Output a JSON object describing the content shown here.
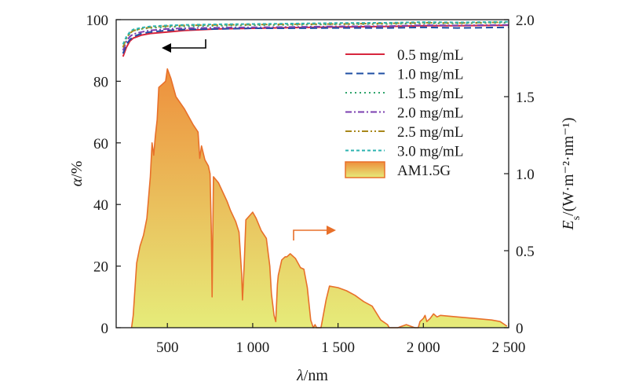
{
  "chart_data": {
    "type": "area",
    "x": {
      "label_symbol": "λ",
      "label_unit": "/nm",
      "range": [
        200,
        2500
      ],
      "ticks": [
        500,
        1000,
        1500,
        2000,
        2500
      ],
      "tick_labels": [
        "500",
        "1 000",
        "1 500",
        "2 000",
        "2 500"
      ]
    },
    "y_left": {
      "label_symbol": "α",
      "label_unit": "/%",
      "range": [
        0,
        100
      ],
      "ticks": [
        0,
        20,
        40,
        60,
        80,
        100
      ],
      "tick_labels": [
        "0",
        "20",
        "40",
        "60",
        "80",
        "100"
      ]
    },
    "y_right": {
      "label_symbol": "E",
      "label_sub": "s",
      "label_unit": "/(W·m⁻²·nm⁻¹)",
      "range": [
        0,
        2.0
      ],
      "ticks": [
        0,
        0.5,
        1.0,
        1.5,
        2.0
      ],
      "tick_labels": [
        "0",
        "0.5",
        "1.0",
        "1.5",
        "2.0"
      ]
    },
    "absorbance_series": [
      {
        "name": "0.5 mg/mL",
        "color": "#d7263d",
        "dash": "solid",
        "x": [
          240,
          260,
          280,
          300,
          350,
          400,
          500,
          600,
          800,
          1000,
          1200,
          1500,
          1800,
          2000,
          2200,
          2500
        ],
        "y": [
          88,
          91,
          93,
          94,
          95,
          95.5,
          96,
          96.5,
          97,
          97.2,
          97.4,
          97.6,
          97.8,
          98,
          98,
          98.2
        ]
      },
      {
        "name": "1.0 mg/mL",
        "color": "#1f4fa3",
        "dash": "longdash",
        "x": [
          240,
          260,
          280,
          300,
          350,
          400,
          500,
          600,
          800,
          1000,
          1200,
          1500,
          1800,
          2000,
          2200,
          2500
        ],
        "y": [
          89,
          92,
          93.5,
          94.5,
          95.5,
          96,
          96.5,
          96.8,
          97,
          97.2,
          97.2,
          97.3,
          97.3,
          97.5,
          97.3,
          97.5
        ]
      },
      {
        "name": "1.5 mg/mL",
        "color": "#2fa56c",
        "dash": "dotted",
        "x": [
          240,
          260,
          280,
          300,
          350,
          400,
          500,
          600,
          800,
          1000,
          1200,
          1500,
          1800,
          2000,
          2200,
          2500
        ],
        "y": [
          91,
          94,
          95.5,
          96.5,
          97,
          97.3,
          97.6,
          97.8,
          98,
          98.2,
          98.3,
          98.5,
          98.6,
          98.8,
          98.8,
          99
        ]
      },
      {
        "name": "2.0 mg/mL",
        "color": "#7b3fb0",
        "dash": "dashdot",
        "x": [
          240,
          260,
          280,
          300,
          350,
          400,
          500,
          600,
          800,
          1000,
          1200,
          1500,
          1800,
          2000,
          2200,
          2500
        ],
        "y": [
          90,
          93,
          94.5,
          95.3,
          96,
          96.5,
          97,
          97.2,
          97.4,
          97.5,
          97.6,
          97.8,
          97.9,
          98.2,
          98.1,
          98.3
        ]
      },
      {
        "name": "2.5 mg/mL",
        "color": "#a8871a",
        "dash": "dashdotdot",
        "x": [
          240,
          260,
          280,
          300,
          350,
          400,
          500,
          600,
          800,
          1000,
          1200,
          1500,
          1800,
          2000,
          2200,
          2500
        ],
        "y": [
          91,
          94,
          95.6,
          96.4,
          97.1,
          97.5,
          97.9,
          98.1,
          98.3,
          98.4,
          98.5,
          98.6,
          98.8,
          99,
          98.9,
          99.2
        ]
      },
      {
        "name": "3.0 mg/mL",
        "color": "#2cb3b0",
        "dash": "shortdash",
        "x": [
          240,
          260,
          280,
          300,
          350,
          400,
          500,
          600,
          800,
          1000,
          1200,
          1500,
          1800,
          2000,
          2200,
          2500
        ],
        "y": [
          92,
          94.5,
          96,
          96.8,
          97.4,
          97.8,
          98.1,
          98.3,
          98.5,
          98.6,
          98.7,
          98.9,
          99,
          99.2,
          99.1,
          99.3
        ]
      }
    ],
    "spectrum": {
      "name": "AM1.5G",
      "x": [
        290,
        300,
        320,
        340,
        360,
        380,
        400,
        410,
        420,
        430,
        440,
        450,
        470,
        490,
        500,
        520,
        550,
        600,
        650,
        680,
        690,
        700,
        720,
        740,
        750,
        758,
        762,
        770,
        800,
        850,
        870,
        900,
        920,
        935,
        940,
        950,
        960,
        1000,
        1020,
        1050,
        1080,
        1100,
        1110,
        1125,
        1135,
        1145,
        1150,
        1170,
        1190,
        1200,
        1220,
        1250,
        1280,
        1300,
        1320,
        1340,
        1355,
        1365,
        1375,
        1400,
        1430,
        1450,
        1500,
        1550,
        1600,
        1650,
        1700,
        1750,
        1790,
        1800,
        1810,
        1820,
        1850,
        1900,
        1950,
        1970,
        1980,
        2000,
        2010,
        2020,
        2040,
        2060,
        2080,
        2100,
        2200,
        2300,
        2400,
        2450,
        2490
      ],
      "y": [
        0,
        0.08,
        0.42,
        0.53,
        0.6,
        0.71,
        0.98,
        1.2,
        1.12,
        1.25,
        1.35,
        1.56,
        1.58,
        1.6,
        1.68,
        1.62,
        1.5,
        1.42,
        1.32,
        1.27,
        1.1,
        1.18,
        1.09,
        1.05,
        1.0,
        0.6,
        0.2,
        0.98,
        0.94,
        0.82,
        0.76,
        0.69,
        0.62,
        0.35,
        0.18,
        0.4,
        0.7,
        0.75,
        0.71,
        0.63,
        0.58,
        0.4,
        0.22,
        0.08,
        0.04,
        0.28,
        0.34,
        0.44,
        0.46,
        0.46,
        0.48,
        0.45,
        0.39,
        0.38,
        0.26,
        0.05,
        0,
        0.02,
        0,
        0,
        0.18,
        0.27,
        0.26,
        0.24,
        0.21,
        0.17,
        0.14,
        0.05,
        0.02,
        0,
        0,
        0,
        0,
        0.02,
        0,
        0,
        0.04,
        0.06,
        0.08,
        0.04,
        0.06,
        0.09,
        0.07,
        0.08,
        0.07,
        0.06,
        0.05,
        0.04,
        0.01
      ]
    },
    "legend": {
      "placement": "top-right",
      "entries": [
        "0.5 mg/mL",
        "1.0 mg/mL",
        "1.5 mg/mL",
        "2.0 mg/mL",
        "2.5 mg/mL",
        "3.0 mg/mL",
        "AM1.5G"
      ]
    },
    "colors": {
      "spectrum_line": "#e8702a",
      "spectrum_fill_top": "#ee8f3c",
      "spectrum_fill_bottom": "#e6ec7a",
      "arrow_left": "#000000",
      "arrow_right": "#e8702a"
    },
    "grid": false
  }
}
